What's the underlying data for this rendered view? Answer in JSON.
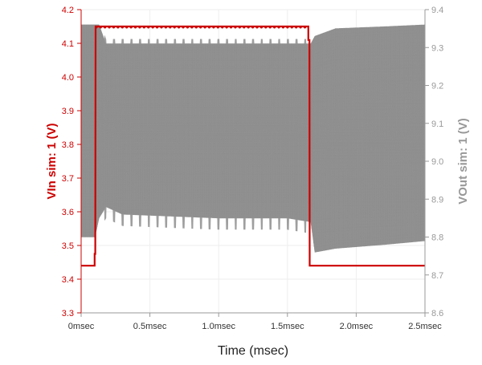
{
  "chart_data": {
    "type": "line",
    "xlabel": "Time (msec)",
    "ylabel_left": "VIn sim: 1 (V)",
    "ylabel_right": "VOut sim: 1 (V)",
    "xlim": [
      0,
      2.5
    ],
    "ylim_left": [
      3.3,
      4.2
    ],
    "ylim_right": [
      8.6,
      9.4
    ],
    "grid": true,
    "x_ticks": [
      {
        "value": 0,
        "label": "0msec"
      },
      {
        "value": 0.5,
        "label": "0.5msec"
      },
      {
        "value": 1.0,
        "label": "1.0msec"
      },
      {
        "value": 1.5,
        "label": "1.5msec"
      },
      {
        "value": 2.0,
        "label": "2.0msec"
      },
      {
        "value": 2.5,
        "label": "2.5msec"
      }
    ],
    "y_ticks_left": [
      {
        "value": 3.3,
        "label": "3.3"
      },
      {
        "value": 3.4,
        "label": "3.4"
      },
      {
        "value": 3.5,
        "label": "3.5"
      },
      {
        "value": 3.6,
        "label": "3.6"
      },
      {
        "value": 3.7,
        "label": "3.7"
      },
      {
        "value": 3.8,
        "label": "3.8"
      },
      {
        "value": 3.9,
        "label": "3.9"
      },
      {
        "value": 4.0,
        "label": "4.0"
      },
      {
        "value": 4.1,
        "label": "4.1"
      },
      {
        "value": 4.2,
        "label": "4.2"
      }
    ],
    "y_ticks_right": [
      {
        "value": 8.6,
        "label": "8.6"
      },
      {
        "value": 8.7,
        "label": "8.7"
      },
      {
        "value": 8.8,
        "label": "8.8"
      },
      {
        "value": 8.9,
        "label": "8.9"
      },
      {
        "value": 9.0,
        "label": "9.0"
      },
      {
        "value": 9.1,
        "label": "9.1"
      },
      {
        "value": 9.2,
        "label": "9.2"
      },
      {
        "value": 9.3,
        "label": "9.3"
      },
      {
        "value": 9.4,
        "label": "9.4"
      }
    ],
    "series": [
      {
        "axis": "left",
        "color": "#cc0000",
        "points": [
          {
            "x": 0.0,
            "y": 3.44
          },
          {
            "x": 0.098,
            "y": 3.44
          },
          {
            "x": 0.098,
            "y": 3.475
          },
          {
            "x": 0.103,
            "y": 3.475
          },
          {
            "x": 0.105,
            "y": 4.15
          },
          {
            "x": 1.652,
            "y": 4.15
          },
          {
            "x": 1.652,
            "y": 4.11
          },
          {
            "x": 1.66,
            "y": 4.11
          },
          {
            "x": 1.662,
            "y": 3.44
          },
          {
            "x": 2.5,
            "y": 3.44
          }
        ]
      },
      {
        "axis": "right",
        "color": "#999999",
        "envelope": [
          {
            "x": 0.0,
            "max": 9.36,
            "min": 8.8
          },
          {
            "x": 0.1,
            "max": 9.36,
            "min": 8.8
          },
          {
            "x": 0.13,
            "max": 9.36,
            "min": 8.85
          },
          {
            "x": 0.18,
            "max": 9.31,
            "min": 8.88
          },
          {
            "x": 0.3,
            "max": 9.31,
            "min": 8.86
          },
          {
            "x": 1.0,
            "max": 9.31,
            "min": 8.85
          },
          {
            "x": 1.5,
            "max": 9.31,
            "min": 8.85
          },
          {
            "x": 1.67,
            "max": 9.31,
            "min": 8.84
          },
          {
            "x": 1.7,
            "max": 9.33,
            "min": 8.76
          },
          {
            "x": 1.85,
            "max": 9.35,
            "min": 8.77
          },
          {
            "x": 2.2,
            "max": 9.355,
            "min": 8.78
          },
          {
            "x": 2.5,
            "max": 9.36,
            "min": 8.79
          }
        ]
      }
    ]
  },
  "colors": {
    "left_axis": "#cc0000",
    "right_axis": "#999999",
    "vin_trace": "#cc0000",
    "vout_trace": "#999999",
    "grid": "#eeeeee"
  }
}
